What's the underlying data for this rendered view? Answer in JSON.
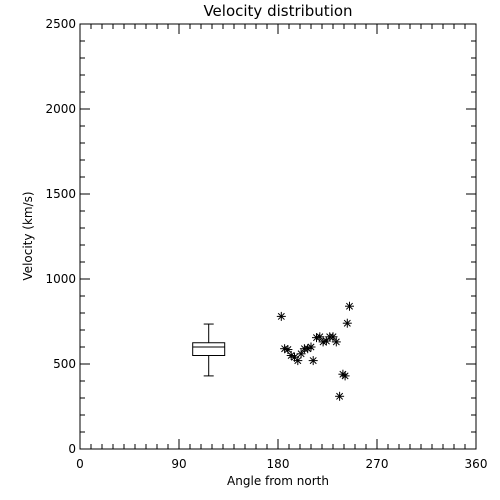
{
  "chart_data": {
    "type": "scatter",
    "title": "Velocity distribution",
    "xlabel": "Angle from north",
    "ylabel": "Velocity (km/s)",
    "xlim": [
      0,
      360
    ],
    "ylim": [
      0,
      2500
    ],
    "xticks": [
      0,
      90,
      180,
      270,
      360
    ],
    "yticks": [
      0,
      500,
      1000,
      1500,
      2000,
      2500
    ],
    "grid": false,
    "marker": "asterisk",
    "points": [
      {
        "x": 183,
        "y": 780
      },
      {
        "x": 186,
        "y": 590
      },
      {
        "x": 189,
        "y": 585
      },
      {
        "x": 192,
        "y": 550
      },
      {
        "x": 195,
        "y": 540
      },
      {
        "x": 198,
        "y": 520
      },
      {
        "x": 201,
        "y": 560
      },
      {
        "x": 204,
        "y": 590
      },
      {
        "x": 207,
        "y": 590
      },
      {
        "x": 210,
        "y": 600
      },
      {
        "x": 212,
        "y": 520
      },
      {
        "x": 215,
        "y": 655
      },
      {
        "x": 218,
        "y": 660
      },
      {
        "x": 221,
        "y": 630
      },
      {
        "x": 224,
        "y": 635
      },
      {
        "x": 227,
        "y": 660
      },
      {
        "x": 230,
        "y": 660
      },
      {
        "x": 233,
        "y": 630
      },
      {
        "x": 236,
        "y": 310
      },
      {
        "x": 239,
        "y": 440
      },
      {
        "x": 241,
        "y": 430
      },
      {
        "x": 243,
        "y": 740
      },
      {
        "x": 245,
        "y": 840
      }
    ],
    "boxplot": {
      "x": 117,
      "min": 430,
      "q1": 550,
      "median": 600,
      "q3": 625,
      "max": 735
    }
  }
}
